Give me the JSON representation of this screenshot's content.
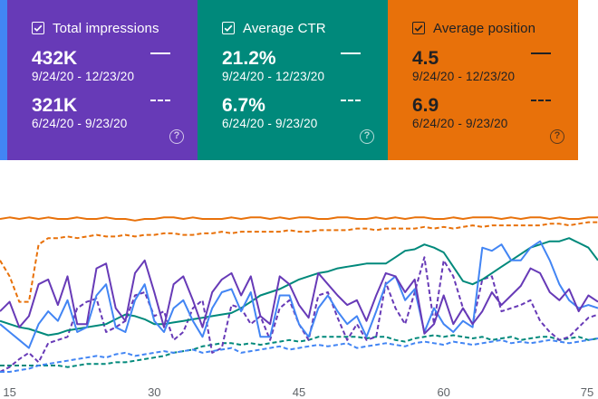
{
  "cards": {
    "impressions": {
      "label": "Total impressions",
      "current_value": "432K",
      "current_range": "9/24/20 - 12/23/20",
      "previous_value": "321K",
      "previous_range": "6/24/20 - 9/23/20",
      "color": "#673ab7",
      "checked": true
    },
    "ctr": {
      "label": "Average CTR",
      "current_value": "21.2%",
      "current_range": "9/24/20 - 12/23/20",
      "previous_value": "6.7%",
      "previous_range": "6/24/20 - 9/23/20",
      "color": "#00897b",
      "checked": true
    },
    "position": {
      "label": "Average position",
      "current_value": "4.5",
      "current_range": "9/24/20 - 12/23/20",
      "previous_value": "6.9",
      "previous_range": "6/24/20 - 9/23/20",
      "color": "#e8710a",
      "checked": true
    }
  },
  "chart_data": {
    "type": "line",
    "x": [
      14,
      15,
      16,
      17,
      18,
      19,
      20,
      21,
      22,
      23,
      24,
      25,
      26,
      27,
      28,
      29,
      30,
      31,
      32,
      33,
      34,
      35,
      36,
      37,
      38,
      39,
      40,
      41,
      42,
      43,
      44,
      45,
      46,
      47,
      48,
      49,
      50,
      51,
      52,
      53,
      54,
      55,
      56,
      57,
      58,
      59,
      60,
      61,
      62,
      63,
      64,
      65,
      66,
      67,
      68,
      69,
      70,
      71,
      72,
      73,
      74,
      75,
      76
    ],
    "xticks": [
      "15",
      "30",
      "45",
      "60",
      "75"
    ],
    "xtick_values": [
      15,
      30,
      45,
      60,
      75
    ],
    "xlim": [
      14,
      76
    ],
    "ylim": [
      0,
      100
    ],
    "grid": false,
    "series": [
      {
        "color": "#e8710a",
        "style": "solid",
        "values": [
          96,
          97,
          96,
          97,
          96,
          97,
          96,
          96,
          97,
          96,
          96,
          97,
          96,
          96,
          95,
          96,
          96,
          97,
          97,
          96,
          97,
          96,
          96,
          96,
          97,
          96,
          97,
          97,
          96,
          97,
          96,
          97,
          97,
          96,
          96,
          97,
          97,
          96,
          96,
          97,
          96,
          97,
          96,
          97,
          97,
          96,
          96,
          97,
          96,
          97,
          97,
          97,
          96,
          97,
          96,
          97,
          97,
          96,
          97,
          96,
          96,
          97,
          97
        ]
      },
      {
        "color": "#e8710a",
        "style": "dashed",
        "values": [
          70,
          60,
          44,
          44,
          80,
          84,
          84,
          85,
          84,
          85,
          86,
          85,
          85,
          86,
          85,
          86,
          86,
          87,
          87,
          86,
          86,
          87,
          87,
          88,
          87,
          88,
          88,
          88,
          88,
          88,
          89,
          88,
          88,
          89,
          89,
          89,
          89,
          90,
          90,
          89,
          90,
          90,
          90,
          90,
          91,
          90,
          91,
          90,
          91,
          92,
          91,
          92,
          92,
          92,
          92,
          92,
          92,
          93,
          93,
          92,
          93,
          94,
          94
        ]
      },
      {
        "color": "#00897b",
        "style": "solid",
        "values": [
          32,
          30,
          28,
          27,
          25,
          23,
          24,
          26,
          27,
          28,
          29,
          30,
          33,
          36,
          35,
          33,
          30,
          30,
          31,
          32,
          33,
          34,
          35,
          36,
          37,
          40,
          44,
          48,
          50,
          52,
          55,
          58,
          60,
          62,
          63,
          65,
          66,
          67,
          68,
          68,
          68,
          72,
          76,
          77,
          80,
          78,
          75,
          66,
          57,
          55,
          58,
          62,
          66,
          70,
          74,
          78,
          80,
          82,
          82,
          84,
          81,
          78,
          70
        ]
      },
      {
        "color": "#00897b",
        "style": "dashed",
        "values": [
          4,
          4,
          4,
          4,
          4,
          4,
          4,
          3,
          4,
          5,
          5,
          5,
          6,
          6,
          7,
          8,
          9,
          10,
          12,
          13,
          14,
          16,
          17,
          18,
          18,
          17,
          18,
          17,
          18,
          19,
          20,
          19,
          20,
          22,
          22,
          22,
          22,
          22,
          21,
          22,
          22,
          20,
          19,
          21,
          22,
          23,
          22,
          23,
          22,
          21,
          22,
          20,
          21,
          22,
          20,
          21,
          22,
          22,
          20,
          21,
          22,
          20,
          21
        ]
      },
      {
        "color": "#673ab7",
        "style": "solid",
        "values": [
          38,
          44,
          28,
          35,
          55,
          58,
          42,
          60,
          30,
          30,
          65,
          68,
          40,
          32,
          62,
          70,
          50,
          28,
          55,
          60,
          45,
          28,
          50,
          58,
          62,
          48,
          60,
          35,
          30,
          60,
          55,
          42,
          34,
          62,
          55,
          48,
          42,
          45,
          32,
          48,
          62,
          60,
          50,
          58,
          24,
          30,
          48,
          30,
          40,
          30,
          38,
          50,
          42,
          48,
          54,
          65,
          62,
          50,
          45,
          52,
          38,
          48,
          44
        ]
      },
      {
        "color": "#673ab7",
        "style": "dashed",
        "values": [
          0,
          3,
          8,
          12,
          6,
          18,
          20,
          22,
          40,
          44,
          46,
          25,
          28,
          32,
          48,
          50,
          35,
          38,
          20,
          25,
          40,
          45,
          12,
          15,
          42,
          40,
          30,
          35,
          20,
          40,
          45,
          30,
          20,
          48,
          50,
          34,
          20,
          30,
          20,
          22,
          56,
          40,
          30,
          50,
          72,
          30,
          70,
          60,
          40,
          30,
          58,
          60,
          38,
          40,
          42,
          45,
          32,
          25,
          20,
          22,
          28,
          34,
          36
        ]
      },
      {
        "color": "#4285f4",
        "style": "solid",
        "values": [
          30,
          25,
          20,
          15,
          30,
          38,
          32,
          45,
          25,
          28,
          48,
          55,
          28,
          25,
          45,
          55,
          32,
          25,
          40,
          45,
          32,
          22,
          40,
          50,
          52,
          38,
          50,
          22,
          22,
          48,
          48,
          30,
          22,
          40,
          48,
          38,
          30,
          35,
          22,
          38,
          55,
          60,
          45,
          52,
          25,
          40,
          30,
          25,
          32,
          28,
          78,
          76,
          80,
          70,
          70,
          78,
          82,
          70,
          55,
          45,
          40,
          42,
          40
        ]
      },
      {
        "color": "#4285f4",
        "style": "dashed",
        "values": [
          0,
          0,
          1,
          2,
          4,
          5,
          6,
          7,
          8,
          9,
          10,
          9,
          11,
          12,
          10,
          11,
          12,
          13,
          12,
          13,
          14,
          12,
          13,
          14,
          15,
          12,
          13,
          14,
          15,
          16,
          14,
          15,
          16,
          17,
          16,
          17,
          18,
          15,
          16,
          17,
          18,
          17,
          16,
          18,
          19,
          18,
          17,
          19,
          18,
          17,
          18,
          19,
          20,
          18,
          19,
          18,
          19,
          20,
          19,
          18,
          19,
          20,
          21
        ]
      }
    ]
  }
}
